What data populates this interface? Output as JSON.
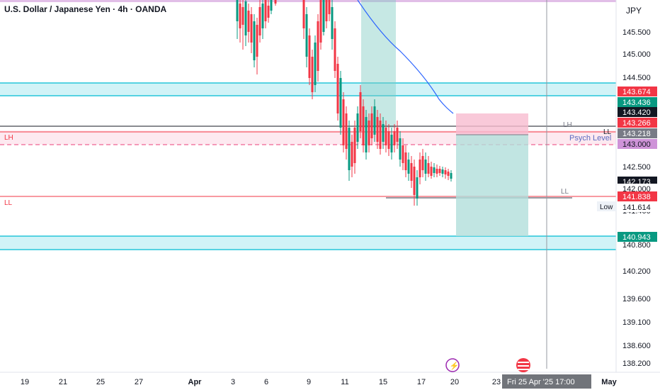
{
  "header": {
    "symbol_title": "U.S. Dollar / Japanese Yen · 4h · OANDA",
    "currency": "JPY"
  },
  "price_axis": {
    "ticks": [
      "145.500",
      "145.000",
      "144.500",
      "142.500",
      "141.400",
      "140.800",
      "140.200",
      "139.600",
      "139.100",
      "138.600",
      "138.200"
    ],
    "badges": [
      {
        "label": "143.674",
        "color": "#f23645",
        "text_color": "#ffffff"
      },
      {
        "label": "143.436",
        "color": "#089981",
        "text_color": "#ffffff"
      },
      {
        "label": "143.420",
        "color": "#131722",
        "text_color": "#ffffff"
      },
      {
        "label": "143.266",
        "color": "#f23645",
        "text_color": "#ffffff"
      },
      {
        "label": "143.218",
        "color": "#787b86",
        "text_color": "#ffffff"
      },
      {
        "label": "143.000",
        "color": "#ce93d8",
        "text_color": "#131722"
      },
      {
        "label": "142.173",
        "color": "#131722",
        "text_color": "#ffffff"
      },
      {
        "label": "142.000",
        "color": "#ffffff",
        "text_color": "#131722"
      },
      {
        "label": "141.838",
        "color": "#f23645",
        "text_color": "#ffffff"
      },
      {
        "label": "141.614",
        "color": "#ffffff",
        "text_color": "#131722"
      },
      {
        "label": "140.943",
        "color": "#089981",
        "text_color": "#ffffff"
      }
    ],
    "low_label": "Low"
  },
  "time_axis": {
    "ticks": [
      "19",
      "21",
      "25",
      "27",
      "Apr",
      "3",
      "6",
      "9",
      "11",
      "15",
      "17",
      "20",
      "23",
      "May"
    ],
    "crosshair_label": "Fri 25 Apr '25   17:00"
  },
  "annotations": {
    "lh_left": "LH",
    "ll_left": "LL",
    "lh_right": "LH",
    "ll_right_top": "LL",
    "ll_right_low": "LL",
    "psych_level": "Psych Level"
  },
  "colors": {
    "up": "#089981",
    "down": "#f23645",
    "zone_cyan": "#26c6da",
    "ma_line": "#2962ff",
    "psych": "#7e57c2"
  }
}
